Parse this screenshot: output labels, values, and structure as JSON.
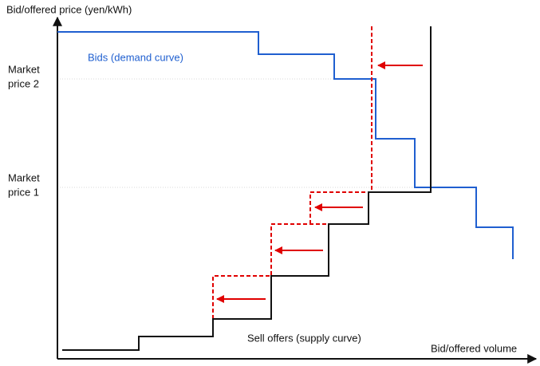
{
  "labels": {
    "y_axis": "Bid/offered price (yen/kWh)",
    "x_axis": "Bid/offered volume",
    "market_price_2": [
      "Market",
      "price 2"
    ],
    "market_price_1": [
      "Market",
      "price 1"
    ],
    "demand_curve": "Bids (demand curve)",
    "supply_curve": "Sell offers (supply curve)"
  }
}
